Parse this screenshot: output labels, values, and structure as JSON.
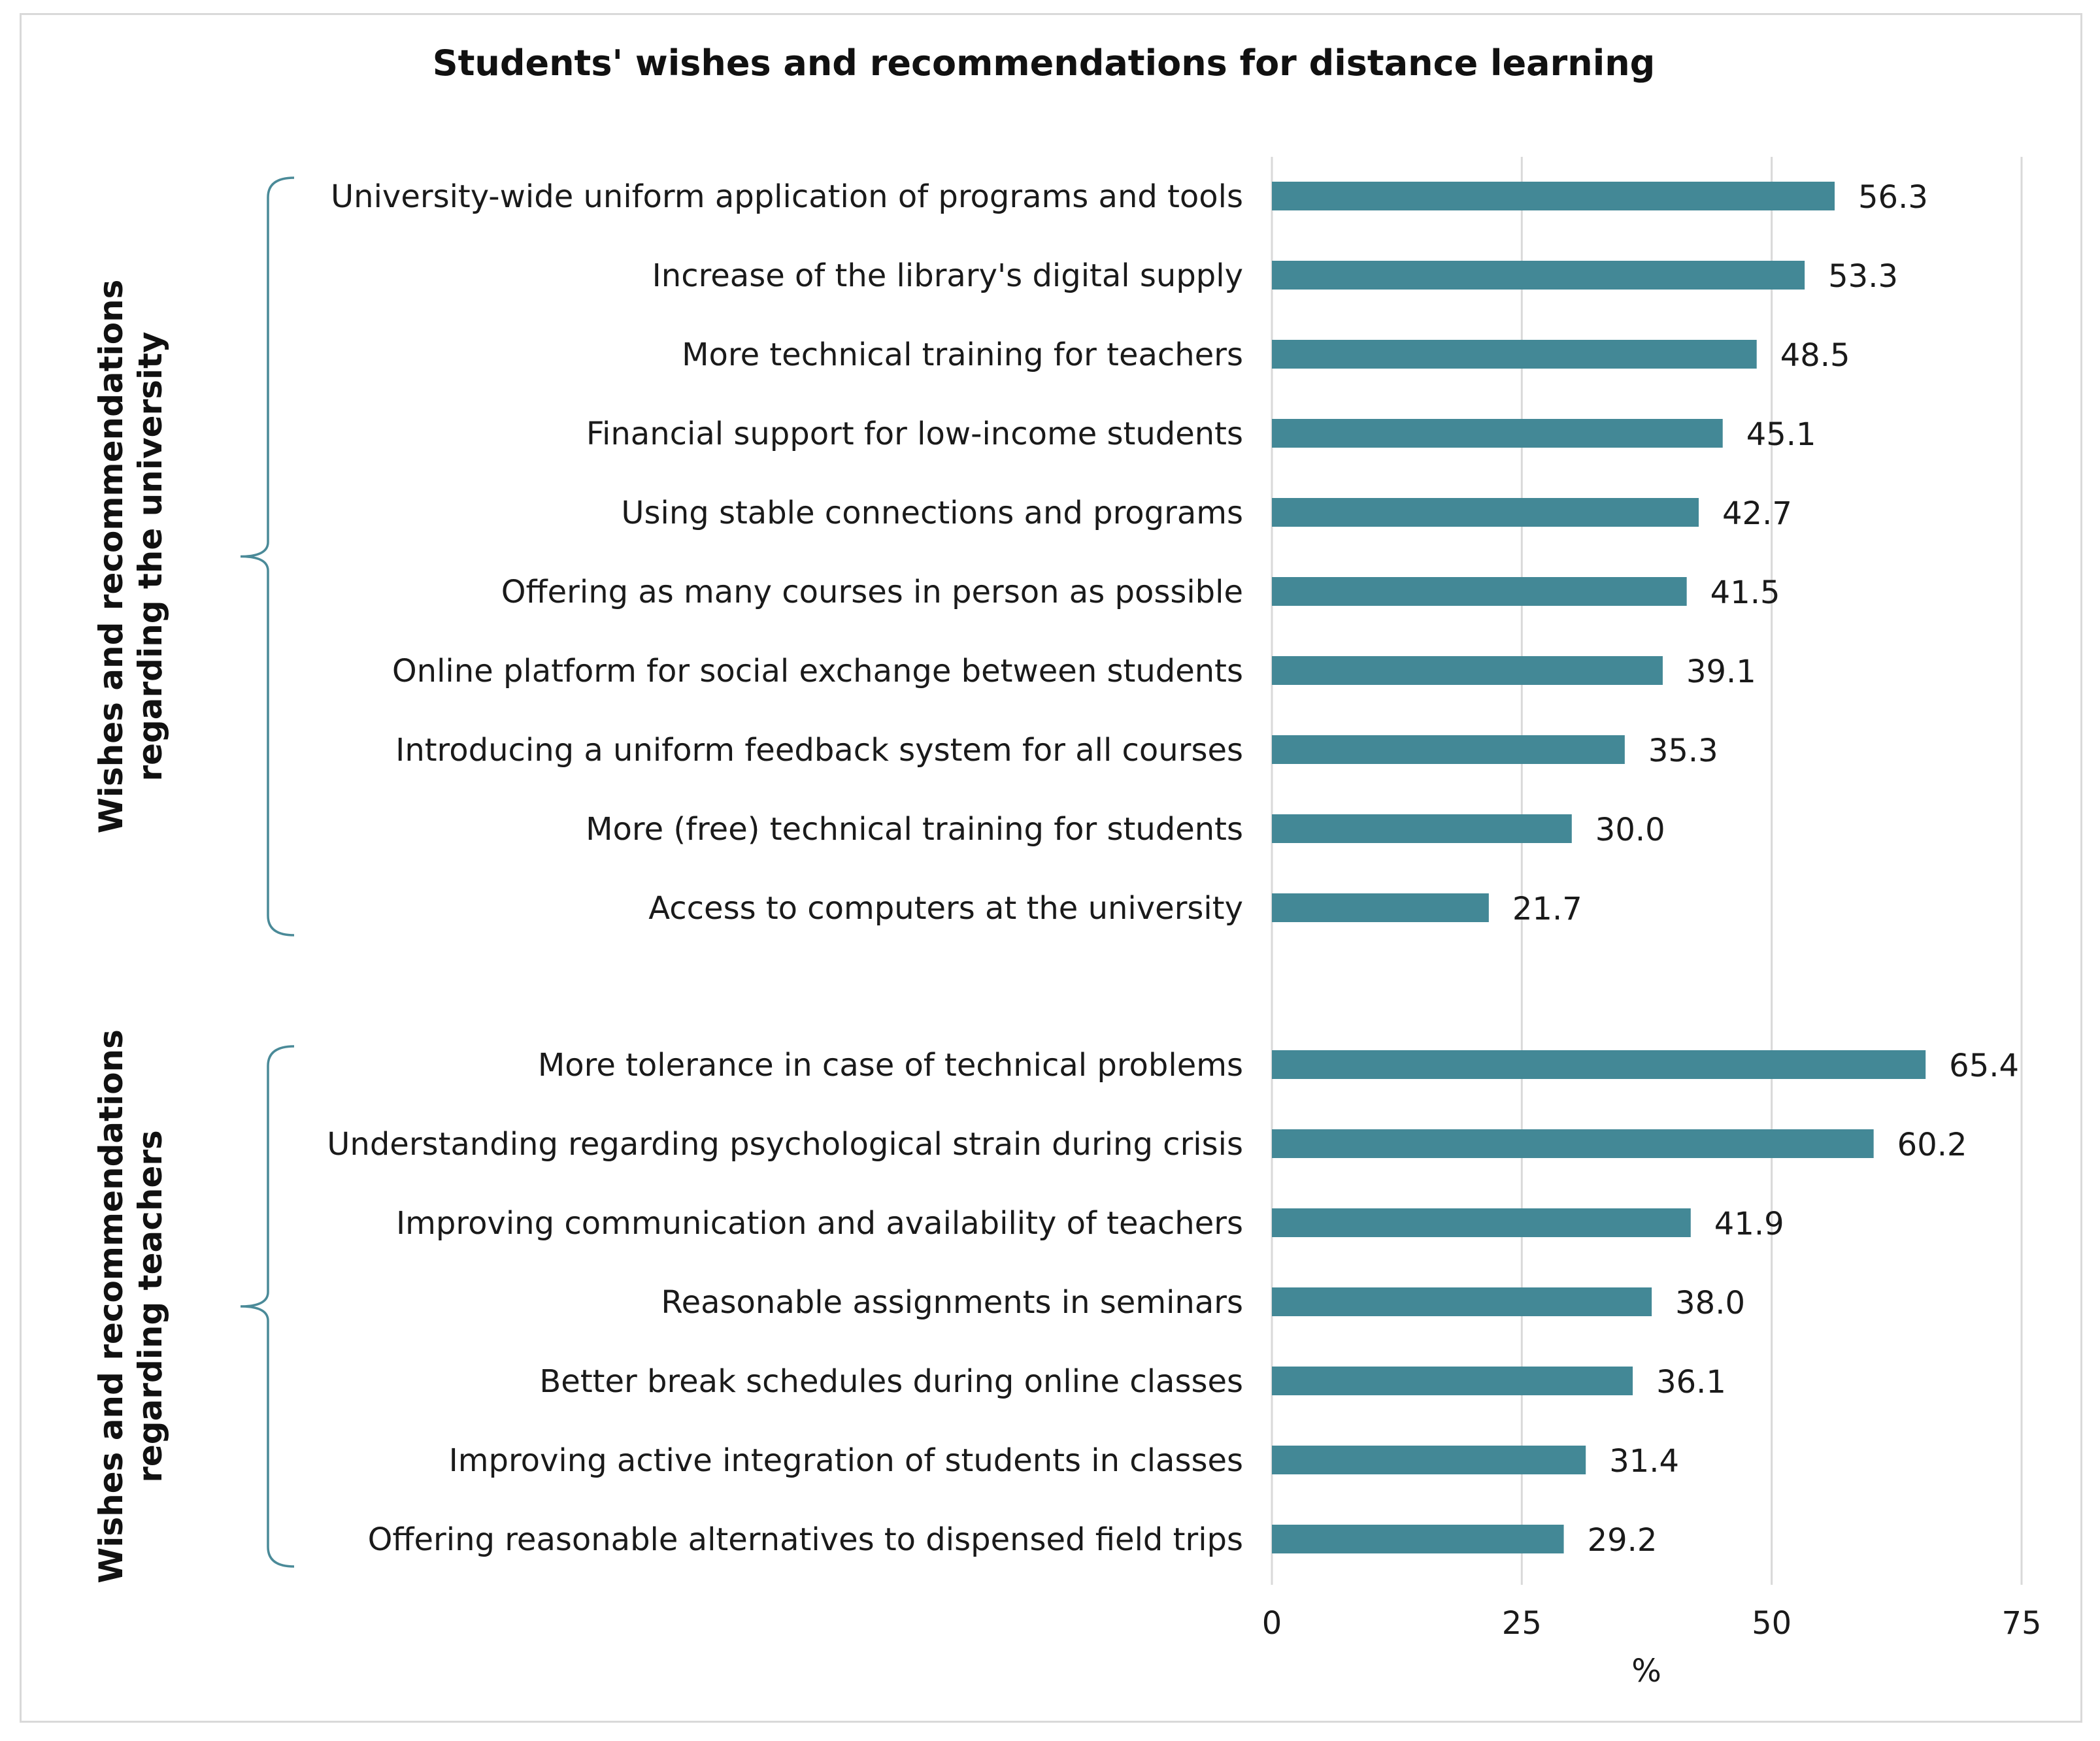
{
  "colors": {
    "bar": "#438896",
    "brace": "#4a8a98",
    "grid": "#d9d9d9"
  },
  "chart_data": {
    "type": "bar",
    "orientation": "horizontal",
    "title": "Students' wishes and recommendations for distance learning",
    "xlabel": "%",
    "xlim": [
      0,
      75
    ],
    "xticks": [
      "0",
      "25",
      "50",
      "75"
    ],
    "grid": "vertical",
    "legend": "none",
    "groups": [
      {
        "label_lines": [
          "Wishes and recommendations",
          "regarding the university"
        ],
        "categories": [
          "University-wide uniform application of programs and tools",
          "Increase of the library's digital supply",
          "More technical training for teachers",
          "Financial support for low-income students",
          "Using stable connections and programs",
          "Offering as many courses in person as possible",
          "Online platform for social exchange between students",
          "Introducing a uniform feedback system for all courses",
          "More (free) technical training for students",
          "Access to computers at the university"
        ],
        "values": [
          56.3,
          53.3,
          48.5,
          45.1,
          42.7,
          41.5,
          39.1,
          35.3,
          30.0,
          21.7
        ],
        "value_labels": [
          "56.3",
          "53.3",
          "48.5",
          "45.1",
          "42.7",
          "41.5",
          "39.1",
          "35.3",
          "30.0",
          "21.7"
        ]
      },
      {
        "label_lines": [
          "Wishes and recommendations",
          "regarding teachers"
        ],
        "categories": [
          "More tolerance in case of technical problems",
          "Understanding regarding psychological strain during crisis",
          "Improving communication and availability of teachers",
          "Reasonable assignments in seminars",
          "Better break schedules during online classes",
          "Improving active integration of students in classes",
          "Offering reasonable alternatives to dispensed field trips"
        ],
        "values": [
          65.4,
          60.2,
          41.9,
          38.0,
          36.1,
          31.4,
          29.2
        ],
        "value_labels": [
          "65.4",
          "60.2",
          "41.9",
          "38.0",
          "36.1",
          "31.4",
          "29.2"
        ]
      }
    ]
  }
}
